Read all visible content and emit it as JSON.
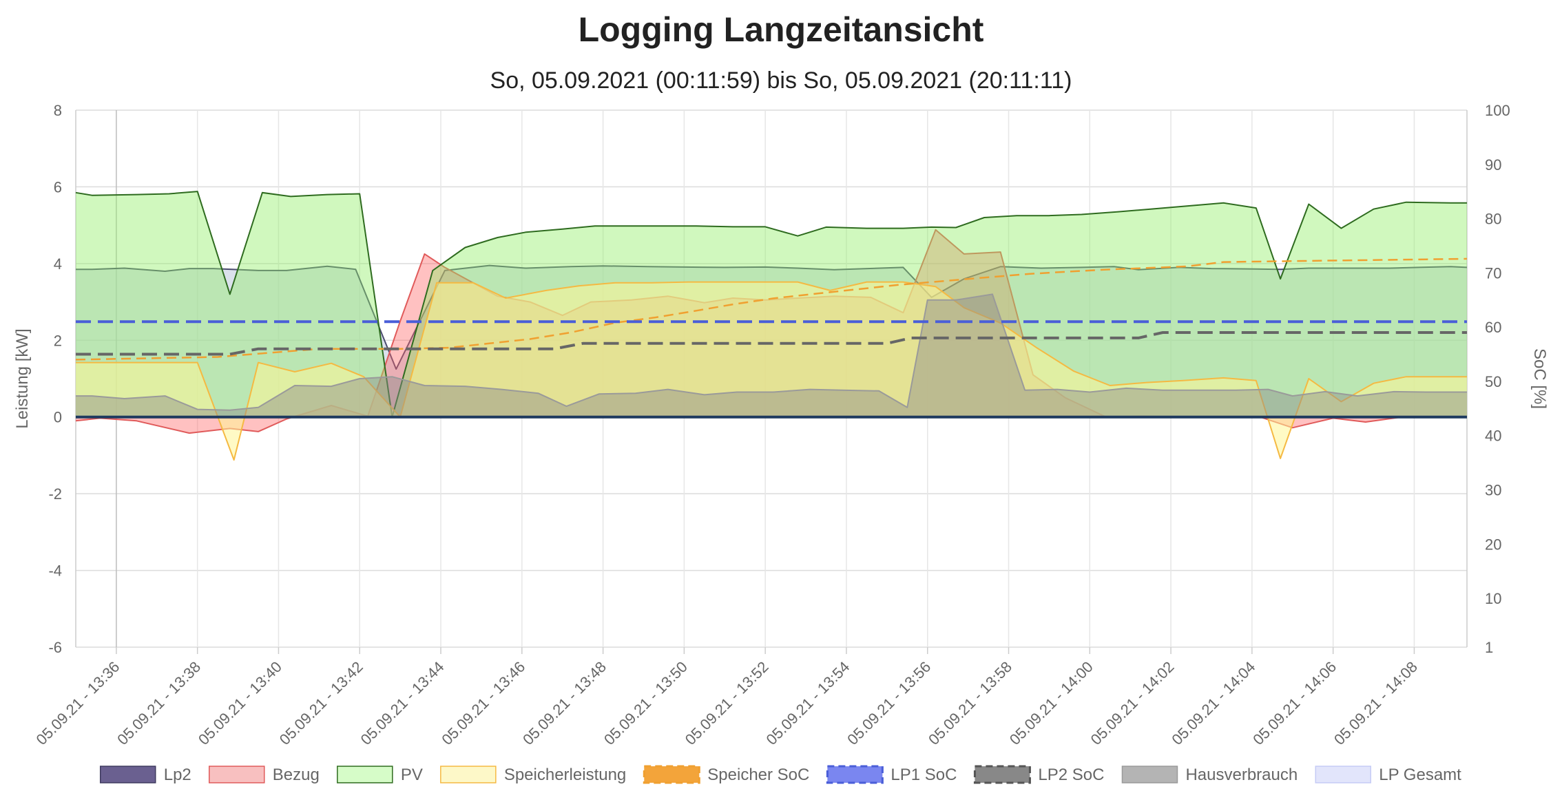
{
  "chart_data": {
    "type": "line",
    "title": "Logging Langzeitansicht",
    "subtitle": "So, 05.09.2021 (00:11:59) bis So, 05.09.2021 (20:11:11)",
    "ylabel_left": "Leistung [kW]",
    "ylabel_right": "SoC [%]",
    "ylim_left": [
      -6,
      8
    ],
    "ylim_right": [
      1,
      100
    ],
    "yticks_left": [
      8,
      6,
      4,
      2,
      0,
      -2,
      -4,
      -6
    ],
    "yticks_right": [
      100,
      90,
      80,
      70,
      60,
      50,
      40,
      30,
      20,
      10,
      1
    ],
    "x_range_minutes": [
      35,
      69.3
    ],
    "x_tick_minutes": [
      36,
      38,
      40,
      42,
      44,
      46,
      48,
      50,
      52,
      54,
      56,
      58,
      60,
      62,
      64,
      66,
      68
    ],
    "x_tick_labels": [
      "05.09.21 - 13:36",
      "05.09.21 - 13:38",
      "05.09.21 - 13:40",
      "05.09.21 - 13:42",
      "05.09.21 - 13:44",
      "05.09.21 - 13:46",
      "05.09.21 - 13:48",
      "05.09.21 - 13:50",
      "05.09.21 - 13:52",
      "05.09.21 - 13:54",
      "05.09.21 - 13:56",
      "05.09.21 - 13:58",
      "05.09.21 - 14:00",
      "05.09.21 - 14:02",
      "05.09.21 - 14:04",
      "05.09.21 - 14:06",
      "05.09.21 - 14:08"
    ],
    "grid": true,
    "legend_position": "bottom",
    "series": [
      {
        "name": "Lp2",
        "axis": "left",
        "fill": true,
        "dashed": false,
        "stroke": "#4b4b6e",
        "fill_color": "rgba(190,200,220,0.55)",
        "x": [
          35,
          35.4,
          36.2,
          37.2,
          37.8,
          38.4,
          39.5,
          40.2,
          41.2,
          41.9,
          42.9,
          44.1,
          45.2,
          46.1,
          47.2,
          48.0,
          49.1,
          50.0,
          51.0,
          52.0,
          52.8,
          53.7,
          55.4,
          56.1,
          56.9,
          57.8,
          58.8,
          59.8,
          60.6,
          61.2,
          62.2,
          63.0,
          64.1,
          64.7,
          65.4,
          66.5,
          67.4,
          68.1,
          68.9,
          69.3
        ],
        "y": [
          3.85,
          3.85,
          3.88,
          3.8,
          3.87,
          3.87,
          3.82,
          3.82,
          3.93,
          3.85,
          1.25,
          3.82,
          3.95,
          3.88,
          3.92,
          3.94,
          3.92,
          3.91,
          3.9,
          3.91,
          3.88,
          3.84,
          3.9,
          3.12,
          3.6,
          3.92,
          3.88,
          3.9,
          3.92,
          3.84,
          3.9,
          3.87,
          3.86,
          3.85,
          3.88,
          3.88,
          3.88,
          3.9,
          3.92,
          3.9
        ]
      },
      {
        "name": "Bezug",
        "axis": "left",
        "fill": true,
        "dashed": false,
        "stroke": "#e05a5a",
        "fill_color": "rgba(255,99,99,0.40)",
        "x": [
          35,
          35.6,
          36.5,
          37.8,
          38.8,
          39.5,
          40.2,
          41.3,
          42.2,
          43.0,
          43.6,
          44.1,
          45.4,
          46.2,
          47.0,
          47.7,
          48.7,
          49.6,
          50.5,
          51.2,
          52.0,
          52.8,
          53.7,
          54.6,
          55.4,
          56.2,
          56.9,
          57.8,
          58.6,
          59.4,
          60.4,
          61.3,
          62.3,
          63.4,
          64.2,
          65.0,
          66.0,
          66.8,
          67.7,
          69.3
        ],
        "y": [
          -0.1,
          -0.03,
          -0.1,
          -0.42,
          -0.3,
          -0.38,
          -0.05,
          0.3,
          0.02,
          2.5,
          4.25,
          3.9,
          3.15,
          3.0,
          2.65,
          3.0,
          3.05,
          3.15,
          2.98,
          3.1,
          3.05,
          3.1,
          3.15,
          3.12,
          2.72,
          4.88,
          4.25,
          4.3,
          1.1,
          0.5,
          0.0,
          0.02,
          0.0,
          0.0,
          0.0,
          -0.28,
          -0.03,
          -0.13,
          0.0,
          0.0
        ]
      },
      {
        "name": "PV",
        "axis": "left",
        "fill": true,
        "dashed": false,
        "stroke": "#2e6b1f",
        "fill_color": "rgba(144,238,100,0.42)",
        "x": [
          35,
          35.4,
          36.5,
          37.3,
          38.0,
          38.8,
          39.6,
          40.3,
          41.2,
          42.0,
          42.8,
          43.8,
          44.6,
          45.4,
          46.1,
          47.0,
          47.8,
          48.5,
          49.3,
          50.3,
          51.2,
          52.0,
          52.8,
          53.5,
          54.5,
          55.4,
          56.1,
          56.7,
          57.4,
          58.2,
          59.0,
          59.8,
          60.7,
          61.5,
          62.4,
          63.3,
          64.1,
          64.7,
          65.4,
          66.2,
          67.0,
          67.8,
          68.9,
          69.3
        ],
        "y": [
          5.85,
          5.78,
          5.8,
          5.82,
          5.88,
          3.2,
          5.85,
          5.75,
          5.8,
          5.82,
          0.0,
          3.82,
          4.42,
          4.68,
          4.82,
          4.9,
          4.98,
          4.98,
          4.98,
          4.98,
          4.96,
          4.96,
          4.72,
          4.95,
          4.92,
          4.92,
          4.95,
          4.94,
          5.2,
          5.25,
          5.25,
          5.28,
          5.35,
          5.42,
          5.5,
          5.58,
          5.45,
          3.6,
          5.55,
          4.92,
          5.42,
          5.6,
          5.58,
          5.58
        ]
      },
      {
        "name": "Speicherleistung",
        "axis": "left",
        "fill": true,
        "dashed": false,
        "stroke": "#f5b942",
        "fill_color": "rgba(255,245,150,0.55)",
        "x": [
          35,
          35.8,
          36.5,
          37.5,
          38.0,
          38.9,
          39.5,
          40.4,
          41.3,
          42.1,
          43.0,
          43.9,
          44.8,
          45.6,
          46.6,
          47.4,
          48.3,
          49.2,
          50.1,
          51.0,
          52.0,
          52.8,
          53.6,
          54.5,
          55.4,
          56.2,
          56.9,
          57.8,
          58.7,
          59.6,
          60.5,
          61.4,
          62.3,
          63.3,
          64.1,
          64.7,
          65.4,
          66.2,
          67.0,
          67.8,
          68.9,
          69.3
        ],
        "y": [
          1.42,
          1.42,
          1.42,
          1.42,
          1.42,
          -1.12,
          1.42,
          1.18,
          1.4,
          1.05,
          0.0,
          3.5,
          3.5,
          3.1,
          3.3,
          3.42,
          3.5,
          3.5,
          3.52,
          3.52,
          3.52,
          3.52,
          3.3,
          3.52,
          3.52,
          3.4,
          2.85,
          2.45,
          1.8,
          1.2,
          0.82,
          0.9,
          0.95,
          1.02,
          0.95,
          -1.08,
          1.0,
          0.4,
          0.88,
          1.05,
          1.05,
          1.05
        ]
      },
      {
        "name": "Hausverbrauch",
        "axis": "left",
        "fill": true,
        "dashed": false,
        "stroke": "#9a9a9a",
        "fill_color": "rgba(140,140,140,0.45)",
        "x": [
          35,
          35.4,
          36.2,
          37.2,
          38.0,
          38.8,
          39.5,
          40.4,
          41.3,
          42.0,
          42.8,
          43.6,
          44.6,
          45.5,
          46.4,
          47.1,
          47.9,
          48.8,
          49.6,
          50.5,
          51.3,
          52.2,
          53.1,
          53.9,
          54.8,
          55.5,
          56.0,
          56.7,
          57.6,
          58.4,
          59.2,
          60.0,
          60.9,
          61.8,
          62.7,
          63.6,
          64.4,
          65.0,
          65.8,
          66.6,
          67.5,
          68.3,
          69.3
        ],
        "y": [
          0.55,
          0.55,
          0.48,
          0.55,
          0.2,
          0.18,
          0.25,
          0.82,
          0.8,
          1.0,
          1.05,
          0.82,
          0.8,
          0.72,
          0.62,
          0.28,
          0.6,
          0.62,
          0.72,
          0.58,
          0.65,
          0.65,
          0.72,
          0.7,
          0.68,
          0.25,
          3.05,
          3.05,
          3.2,
          0.7,
          0.72,
          0.65,
          0.75,
          0.7,
          0.7,
          0.7,
          0.72,
          0.55,
          0.66,
          0.55,
          0.66,
          0.65,
          0.65
        ]
      },
      {
        "name": "Speicher SoC",
        "axis": "right",
        "fill": false,
        "dashed": true,
        "stroke": "#f0a030",
        "fill_color": "",
        "x": [
          35,
          38.5,
          41.0,
          43.0,
          44.2,
          45.2,
          46.2,
          47.2,
          48.3,
          49.3,
          50.2,
          51.2,
          52.2,
          53.3,
          54.3,
          55.3,
          56.4,
          57.5,
          58.5,
          59.4,
          60.4,
          61.4,
          62.4,
          63.3,
          64.3,
          65.3,
          66.3,
          67.3,
          68.3,
          69.3
        ],
        "y": [
          54.0,
          54.5,
          56.0,
          56.0,
          56.2,
          57.0,
          57.8,
          59.0,
          60.8,
          61.8,
          62.9,
          64.2,
          65.3,
          66.2,
          67.0,
          67.8,
          68.5,
          69.2,
          69.8,
          70.2,
          70.6,
          70.9,
          71.2,
          72.0,
          72.1,
          72.2,
          72.3,
          72.4,
          72.5,
          72.6
        ]
      },
      {
        "name": "LP1 SoC",
        "axis": "right",
        "fill": false,
        "dashed": true,
        "stroke": "#4a5ed8",
        "fill_color": "",
        "x": [
          35,
          69.3
        ],
        "y": [
          61,
          61
        ]
      },
      {
        "name": "LP2 SoC",
        "axis": "right",
        "fill": false,
        "dashed": true,
        "stroke": "#666666",
        "fill_color": "",
        "x": [
          35,
          38.8,
          39.5,
          46.8,
          47.5,
          55.0,
          55.6,
          61.2,
          61.8,
          69.3
        ],
        "y": [
          55,
          55,
          56,
          56,
          57,
          57,
          58,
          58,
          59,
          59
        ]
      },
      {
        "name": "LP Gesamt",
        "axis": "left",
        "fill": false,
        "dashed": false,
        "stroke": "#c5cbf5",
        "fill_color": "",
        "x": [],
        "y": []
      },
      {
        "name": "Zero",
        "axis": "left",
        "fill": false,
        "dashed": false,
        "stroke": "#1f3a5f",
        "fill_color": "",
        "x": [
          35,
          69.3
        ],
        "y": [
          0,
          0
        ]
      }
    ],
    "legend": [
      {
        "label": "Lp2",
        "fill": "#6a6090",
        "stroke": "#3f3a5f",
        "dashed": false
      },
      {
        "label": "Bezug",
        "fill": "#f8c0c0",
        "stroke": "#e05a5a",
        "dashed": false
      },
      {
        "label": "PV",
        "fill": "#d6fcc8",
        "stroke": "#2e6b1f",
        "dashed": false
      },
      {
        "label": "Speicherleistung",
        "fill": "#fdf8c8",
        "stroke": "#f5b942",
        "dashed": false
      },
      {
        "label": "Speicher SoC",
        "fill": "#f3a43a",
        "stroke": "#f0a030",
        "dashed": true
      },
      {
        "label": "LP1 SoC",
        "fill": "#7a86f0",
        "stroke": "#4a5ed8",
        "dashed": true
      },
      {
        "label": "LP2 SoC",
        "fill": "#888888",
        "stroke": "#555555",
        "dashed": true
      },
      {
        "label": "Hausverbrauch",
        "fill": "#b4b4b4",
        "stroke": "#9a9a9a",
        "dashed": false
      },
      {
        "label": "LP Gesamt",
        "fill": "#e2e5fb",
        "stroke": "#c5cbf5",
        "dashed": false
      }
    ]
  }
}
